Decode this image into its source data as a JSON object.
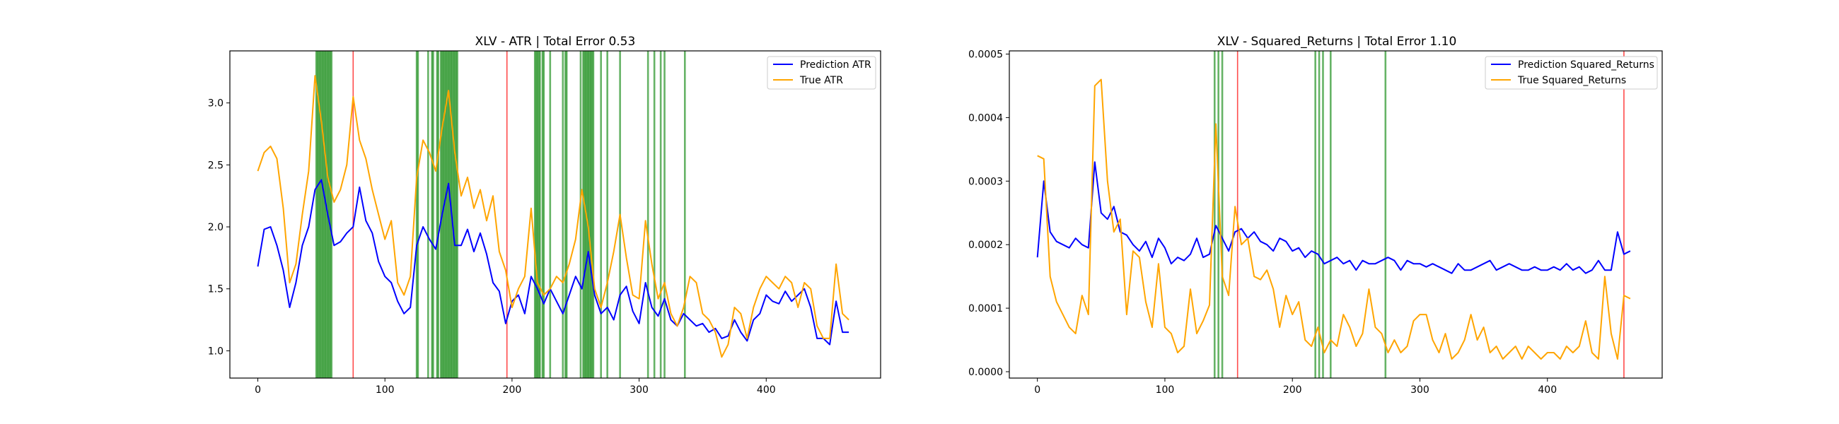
{
  "figure": {
    "background": "#ffffff"
  },
  "chart_data": [
    {
      "type": "line",
      "title": "XLV - ATR | Total Error 0.53",
      "xlabel": "",
      "ylabel": "",
      "xlim": [
        -22,
        490
      ],
      "ylim": [
        0.78,
        3.42
      ],
      "xticks": [
        0,
        100,
        200,
        300,
        400
      ],
      "yticks": [
        1.0,
        1.5,
        2.0,
        2.5,
        3.0
      ],
      "ytick_labels": [
        "1.0",
        "1.5",
        "2.0",
        "2.5",
        "3.0"
      ],
      "grid": false,
      "legend_position": "top-right",
      "series": [
        {
          "name": "Prediction ATR",
          "color": "#0000ff",
          "x": [
            0,
            5,
            10,
            15,
            20,
            25,
            30,
            35,
            40,
            45,
            50,
            55,
            60,
            65,
            70,
            75,
            80,
            85,
            90,
            95,
            100,
            105,
            110,
            115,
            120,
            125,
            130,
            135,
            140,
            145,
            150,
            155,
            160,
            165,
            170,
            175,
            180,
            185,
            190,
            195,
            200,
            205,
            210,
            215,
            220,
            225,
            230,
            235,
            240,
            245,
            250,
            255,
            260,
            265,
            270,
            275,
            280,
            285,
            290,
            295,
            300,
            305,
            310,
            315,
            320,
            325,
            330,
            335,
            340,
            345,
            350,
            355,
            360,
            365,
            370,
            375,
            380,
            385,
            390,
            395,
            400,
            405,
            410,
            415,
            420,
            425,
            430,
            435,
            440,
            445,
            450,
            455,
            460,
            465
          ],
          "y": [
            1.68,
            1.98,
            2.0,
            1.85,
            1.65,
            1.35,
            1.55,
            1.85,
            2.0,
            2.3,
            2.38,
            2.1,
            1.85,
            1.88,
            1.95,
            2.0,
            2.32,
            2.05,
            1.95,
            1.72,
            1.6,
            1.55,
            1.4,
            1.3,
            1.35,
            1.85,
            2.0,
            1.9,
            1.82,
            2.1,
            2.35,
            1.85,
            1.85,
            1.98,
            1.8,
            1.95,
            1.78,
            1.55,
            1.48,
            1.22,
            1.4,
            1.45,
            1.3,
            1.6,
            1.5,
            1.38,
            1.5,
            1.4,
            1.3,
            1.45,
            1.6,
            1.5,
            1.8,
            1.45,
            1.3,
            1.35,
            1.25,
            1.45,
            1.52,
            1.32,
            1.22,
            1.55,
            1.35,
            1.28,
            1.42,
            1.25,
            1.2,
            1.3,
            1.25,
            1.2,
            1.22,
            1.15,
            1.18,
            1.1,
            1.12,
            1.25,
            1.15,
            1.08,
            1.25,
            1.3,
            1.45,
            1.4,
            1.38,
            1.48,
            1.4,
            1.45,
            1.5,
            1.35,
            1.1,
            1.1,
            1.05,
            1.4,
            1.15,
            1.15
          ]
        },
        {
          "name": "True ATR",
          "color": "#ffa500",
          "x": [
            0,
            5,
            10,
            15,
            20,
            25,
            30,
            35,
            40,
            45,
            50,
            55,
            60,
            65,
            70,
            75,
            80,
            85,
            90,
            95,
            100,
            105,
            110,
            115,
            120,
            125,
            130,
            135,
            140,
            145,
            150,
            155,
            160,
            165,
            170,
            175,
            180,
            185,
            190,
            195,
            200,
            205,
            210,
            215,
            220,
            225,
            230,
            235,
            240,
            245,
            250,
            255,
            260,
            265,
            270,
            275,
            280,
            285,
            290,
            295,
            300,
            305,
            310,
            315,
            320,
            325,
            330,
            335,
            340,
            345,
            350,
            355,
            360,
            365,
            370,
            375,
            380,
            385,
            390,
            395,
            400,
            405,
            410,
            415,
            420,
            425,
            430,
            435,
            440,
            445,
            450,
            455,
            460,
            465
          ],
          "y": [
            2.45,
            2.6,
            2.65,
            2.55,
            2.15,
            1.55,
            1.7,
            2.1,
            2.45,
            3.22,
            2.85,
            2.4,
            2.2,
            2.3,
            2.5,
            3.05,
            2.7,
            2.55,
            2.3,
            2.1,
            1.9,
            2.05,
            1.55,
            1.45,
            1.6,
            2.4,
            2.7,
            2.6,
            2.45,
            2.8,
            3.1,
            2.6,
            2.25,
            2.4,
            2.15,
            2.3,
            2.05,
            2.25,
            1.8,
            1.65,
            1.35,
            1.5,
            1.6,
            2.15,
            1.55,
            1.45,
            1.5,
            1.6,
            1.55,
            1.7,
            1.9,
            2.3,
            2.0,
            1.5,
            1.35,
            1.55,
            1.8,
            2.1,
            1.75,
            1.45,
            1.42,
            2.05,
            1.7,
            1.42,
            1.55,
            1.3,
            1.2,
            1.35,
            1.6,
            1.55,
            1.3,
            1.25,
            1.15,
            0.95,
            1.05,
            1.35,
            1.3,
            1.1,
            1.35,
            1.5,
            1.6,
            1.55,
            1.5,
            1.6,
            1.55,
            1.35,
            1.55,
            1.5,
            1.2,
            1.1,
            1.1,
            1.7,
            1.3,
            1.25
          ]
        }
      ],
      "vlines_green": [
        46,
        47,
        48,
        49,
        50,
        51,
        52,
        53,
        54,
        55,
        56,
        57,
        58,
        125,
        126,
        134,
        137,
        138,
        141,
        142,
        144,
        145,
        146,
        147,
        148,
        149,
        150,
        151,
        152,
        153,
        154,
        155,
        156,
        157,
        218,
        219,
        220,
        221,
        222,
        224,
        225,
        230,
        240,
        242,
        243,
        254,
        256,
        257,
        258,
        259,
        260,
        261,
        262,
        263,
        264,
        270,
        275,
        285,
        307,
        312,
        317,
        320,
        336
      ],
      "vlines_red": [
        75,
        196
      ],
      "vline_colors": {
        "green": "#008000",
        "red": "#ff0000"
      }
    },
    {
      "type": "line",
      "title": "XLV - Squared_Returns | Total Error 1.10",
      "xlabel": "",
      "ylabel": "",
      "xlim": [
        -22,
        490
      ],
      "ylim": [
        -1e-05,
        0.000505
      ],
      "xticks": [
        0,
        100,
        200,
        300,
        400
      ],
      "yticks": [
        0,
        0.0001,
        0.0002,
        0.0003,
        0.0004,
        0.0005
      ],
      "ytick_labels": [
        "0.0000",
        "0.0001",
        "0.0002",
        "0.0003",
        "0.0004",
        "0.0005"
      ],
      "grid": false,
      "legend_position": "top-right",
      "series": [
        {
          "name": "Prediction Squared_Returns",
          "color": "#0000ff",
          "x": [
            0,
            5,
            10,
            15,
            20,
            25,
            30,
            35,
            40,
            45,
            50,
            55,
            60,
            65,
            70,
            75,
            80,
            85,
            90,
            95,
            100,
            105,
            110,
            115,
            120,
            125,
            130,
            135,
            140,
            145,
            150,
            155,
            160,
            165,
            170,
            175,
            180,
            185,
            190,
            195,
            200,
            205,
            210,
            215,
            220,
            225,
            230,
            235,
            240,
            245,
            250,
            255,
            260,
            265,
            270,
            275,
            280,
            285,
            290,
            295,
            300,
            305,
            310,
            315,
            320,
            325,
            330,
            335,
            340,
            345,
            350,
            355,
            360,
            365,
            370,
            375,
            380,
            385,
            390,
            395,
            400,
            405,
            410,
            415,
            420,
            425,
            430,
            435,
            440,
            445,
            450,
            455,
            460,
            465
          ],
          "y": [
            0.00018,
            0.0003,
            0.00022,
            0.000205,
            0.0002,
            0.000195,
            0.00021,
            0.0002,
            0.000195,
            0.00033,
            0.00025,
            0.00024,
            0.00026,
            0.00022,
            0.000215,
            0.0002,
            0.00019,
            0.000205,
            0.00018,
            0.00021,
            0.000195,
            0.00017,
            0.00018,
            0.000175,
            0.000185,
            0.00021,
            0.00018,
            0.000185,
            0.00023,
            0.00021,
            0.00019,
            0.00022,
            0.000225,
            0.00021,
            0.00022,
            0.000205,
            0.0002,
            0.00019,
            0.00021,
            0.000205,
            0.00019,
            0.000195,
            0.00018,
            0.00019,
            0.000185,
            0.00017,
            0.000175,
            0.00018,
            0.00017,
            0.000175,
            0.00016,
            0.000175,
            0.00017,
            0.00017,
            0.000175,
            0.00018,
            0.000175,
            0.00016,
            0.000175,
            0.00017,
            0.00017,
            0.000165,
            0.00017,
            0.000165,
            0.00016,
            0.000155,
            0.00017,
            0.00016,
            0.00016,
            0.000165,
            0.00017,
            0.000175,
            0.00016,
            0.000165,
            0.00017,
            0.000165,
            0.00016,
            0.00016,
            0.000165,
            0.00016,
            0.00016,
            0.000165,
            0.00016,
            0.00017,
            0.00016,
            0.000165,
            0.000155,
            0.00016,
            0.000175,
            0.00016,
            0.00016,
            0.00022,
            0.000185,
            0.00019
          ]
        },
        {
          "name": "True Squared_Returns",
          "color": "#ffa500",
          "x": [
            0,
            5,
            10,
            15,
            20,
            25,
            30,
            35,
            40,
            45,
            50,
            55,
            60,
            65,
            70,
            75,
            80,
            85,
            90,
            95,
            100,
            105,
            110,
            115,
            120,
            125,
            130,
            135,
            140,
            145,
            150,
            155,
            160,
            165,
            170,
            175,
            180,
            185,
            190,
            195,
            200,
            205,
            210,
            215,
            220,
            225,
            230,
            235,
            240,
            245,
            250,
            255,
            260,
            265,
            270,
            275,
            280,
            285,
            290,
            295,
            300,
            305,
            310,
            315,
            320,
            325,
            330,
            335,
            340,
            345,
            350,
            355,
            360,
            365,
            370,
            375,
            380,
            385,
            390,
            395,
            400,
            405,
            410,
            415,
            420,
            425,
            430,
            435,
            440,
            445,
            450,
            455,
            460,
            465
          ],
          "y": [
            0.00034,
            0.000335,
            0.00015,
            0.00011,
            9e-05,
            7e-05,
            6e-05,
            0.00012,
            9e-05,
            0.00045,
            0.00046,
            0.0003,
            0.00022,
            0.00024,
            9e-05,
            0.00019,
            0.00018,
            0.00011,
            7e-05,
            0.00017,
            7e-05,
            6e-05,
            3e-05,
            4e-05,
            0.00013,
            6e-05,
            8e-05,
            0.000105,
            0.00039,
            0.00015,
            0.00012,
            0.00026,
            0.0002,
            0.00021,
            0.00015,
            0.000145,
            0.00016,
            0.00013,
            7e-05,
            0.00012,
            9e-05,
            0.00011,
            5e-05,
            4e-05,
            7e-05,
            3e-05,
            5e-05,
            4e-05,
            9e-05,
            7e-05,
            4e-05,
            6e-05,
            0.00013,
            7e-05,
            6e-05,
            3e-05,
            5e-05,
            3e-05,
            4e-05,
            8e-05,
            9e-05,
            9e-05,
            5e-05,
            3e-05,
            6e-05,
            2e-05,
            3e-05,
            5e-05,
            9e-05,
            5e-05,
            7e-05,
            3e-05,
            4e-05,
            2e-05,
            3e-05,
            4e-05,
            2e-05,
            4e-05,
            3e-05,
            2e-05,
            3e-05,
            3e-05,
            2e-05,
            4e-05,
            3e-05,
            4e-05,
            8e-05,
            3e-05,
            2e-05,
            0.00015,
            6e-05,
            2e-05,
            0.00012,
            0.000115
          ]
        }
      ],
      "vlines_green": [
        139,
        142,
        145,
        218,
        221,
        224,
        230,
        273
      ],
      "vlines_red": [
        157,
        460
      ],
      "vline_colors": {
        "green": "#008000",
        "red": "#ff0000"
      }
    }
  ]
}
